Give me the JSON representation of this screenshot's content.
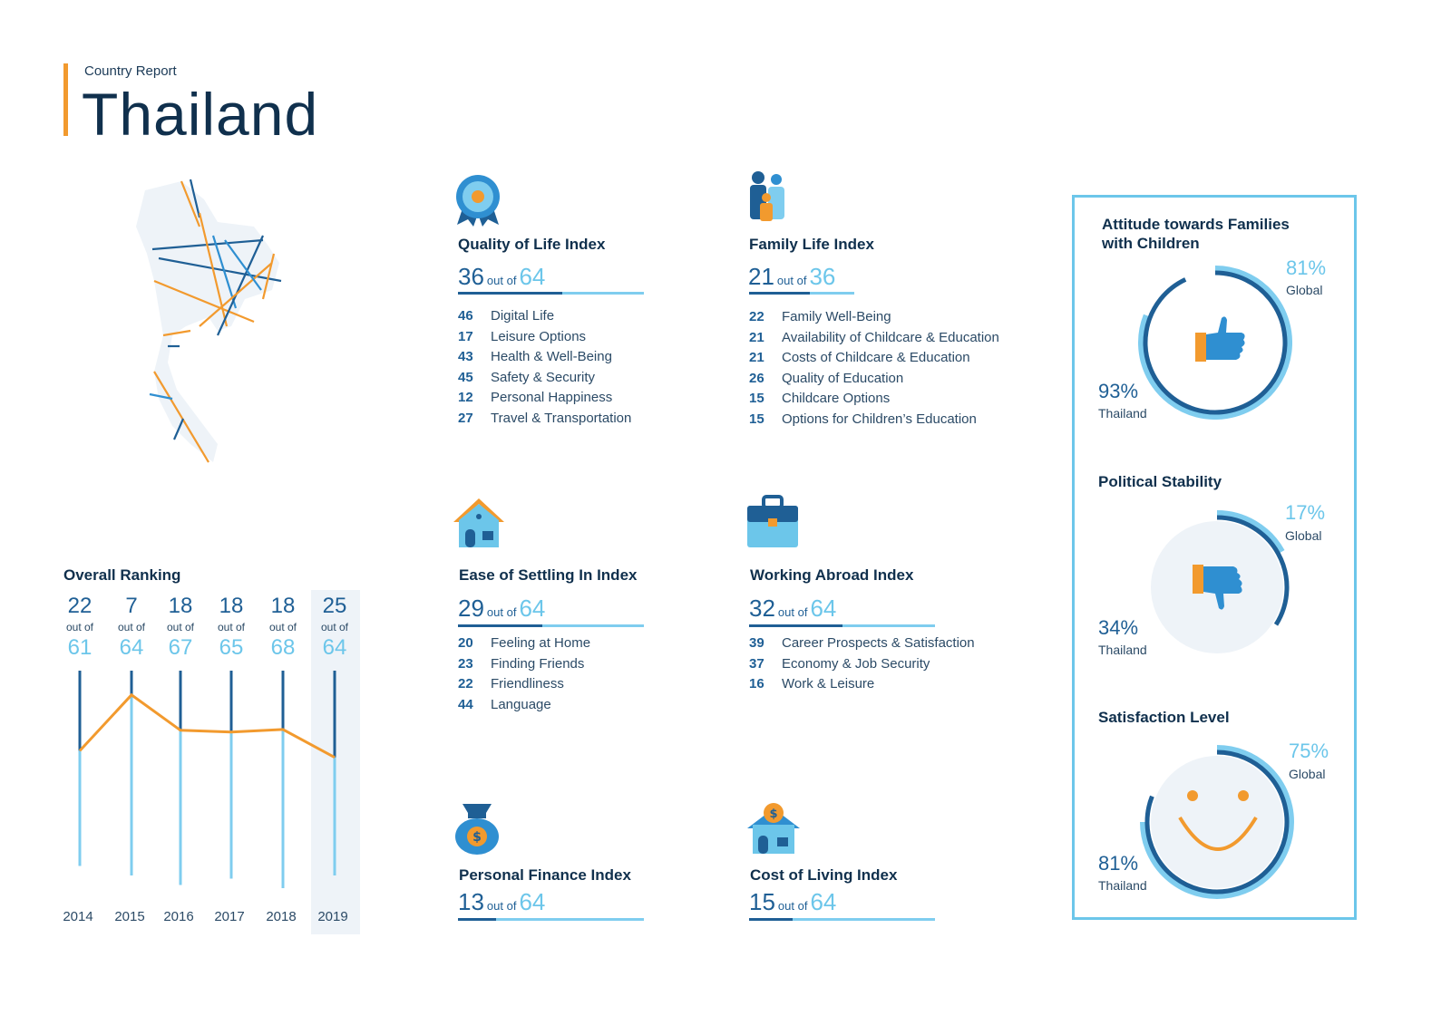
{
  "header": {
    "subtitle": "Country Report",
    "title": "Thailand"
  },
  "colors": {
    "dark_blue": "#1f5f95",
    "light_blue": "#6cc6ea",
    "orange": "#f29a2e",
    "navy": "#10304d"
  },
  "indices": {
    "quality_of_life": {
      "title": "Quality of Life Index",
      "icon": "award-badge-icon",
      "rank": "36",
      "out_of": "out of",
      "total": "64",
      "items": [
        {
          "num": "46",
          "label": "Digital Life"
        },
        {
          "num": "17",
          "label": "Leisure Options"
        },
        {
          "num": "43",
          "label": "Health & Well-Being"
        },
        {
          "num": "45",
          "label": "Safety & Security"
        },
        {
          "num": "12",
          "label": "Personal Happiness"
        },
        {
          "num": "27",
          "label": "Travel & Transportation"
        }
      ]
    },
    "family_life": {
      "title": "Family Life Index",
      "icon": "family-icon",
      "rank": "21",
      "out_of": "out of",
      "total": "36",
      "items": [
        {
          "num": "22",
          "label": "Family Well-Being"
        },
        {
          "num": "21",
          "label": "Availability of Childcare & Education"
        },
        {
          "num": "21",
          "label": "Costs of Childcare & Education"
        },
        {
          "num": "26",
          "label": "Quality of Education"
        },
        {
          "num": "15",
          "label": "Childcare Options"
        },
        {
          "num": "15",
          "label": "Options for Children’s Education"
        }
      ]
    },
    "ease_of_settling": {
      "title": "Ease of Settling In Index",
      "icon": "house-icon",
      "rank": "29",
      "out_of": "out of",
      "total": "64",
      "items": [
        {
          "num": "20",
          "label": "Feeling at Home"
        },
        {
          "num": "23",
          "label": "Finding Friends"
        },
        {
          "num": "22",
          "label": "Friendliness"
        },
        {
          "num": "44",
          "label": "Language"
        }
      ]
    },
    "working_abroad": {
      "title": "Working Abroad Index",
      "icon": "briefcase-icon",
      "rank": "32",
      "out_of": "out of",
      "total": "64",
      "items": [
        {
          "num": "39",
          "label": "Career Prospects & Satisfaction"
        },
        {
          "num": "37",
          "label": "Economy & Job Security"
        },
        {
          "num": "16",
          "label": "Work & Leisure"
        }
      ]
    },
    "personal_finance": {
      "title": "Personal Finance Index",
      "icon": "money-bag-icon",
      "rank": "13",
      "out_of": "out of",
      "total": "64",
      "items": []
    },
    "cost_of_living": {
      "title": "Cost of Living Index",
      "icon": "house-coin-icon",
      "rank": "15",
      "out_of": "out of",
      "total": "64",
      "items": []
    }
  },
  "overall_ranking": {
    "title": "Overall Ranking",
    "columns": [
      {
        "year": "2014",
        "rank": "22",
        "out_of": "out of",
        "total": "61"
      },
      {
        "year": "2015",
        "rank": "7",
        "out_of": "out of",
        "total": "64"
      },
      {
        "year": "2016",
        "rank": "18",
        "out_of": "out of",
        "total": "67"
      },
      {
        "year": "2017",
        "rank": "18",
        "out_of": "out of",
        "total": "65"
      },
      {
        "year": "2018",
        "rank": "18",
        "out_of": "out of",
        "total": "68"
      },
      {
        "year": "2019",
        "rank": "25",
        "out_of": "out of",
        "total": "64"
      }
    ],
    "highlighted_year": "2019"
  },
  "survey": {
    "families": {
      "title": "Attitude towards Families with Children",
      "icon": "thumbs-up-icon",
      "global_pct": "81%",
      "global_label": "Global",
      "global_value": 81,
      "local_pct": "93%",
      "local_label": "Thailand",
      "local_value": 93
    },
    "political": {
      "title": "Political Stability",
      "icon": "thumbs-down-icon",
      "global_pct": "17%",
      "global_label": "Global",
      "global_value": 17,
      "local_pct": "34%",
      "local_label": "Thailand",
      "local_value": 34
    },
    "satisfaction": {
      "title": "Satisfaction Level",
      "icon": "smiley-icon",
      "global_pct": "75%",
      "global_label": "Global",
      "global_value": 75,
      "local_pct": "81%",
      "local_label": "Thailand",
      "local_value": 81
    }
  }
}
